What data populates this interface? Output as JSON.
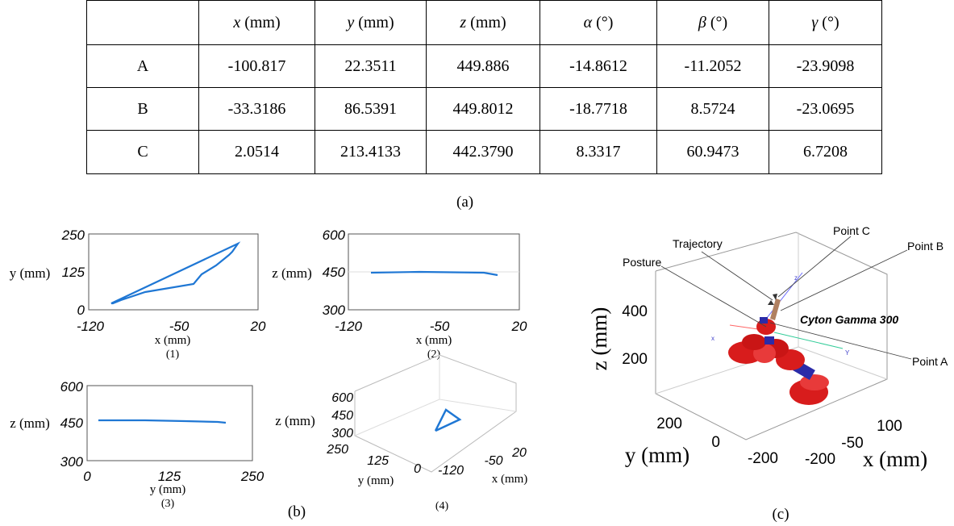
{
  "table": {
    "headers": [
      "",
      "x (mm)",
      "y (mm)",
      "z (mm)",
      "α (°)",
      "β (°)",
      "γ (°)"
    ],
    "header_vars": [
      "",
      "x",
      "y",
      "z",
      "α",
      "β",
      "γ"
    ],
    "header_units": [
      "",
      "(mm)",
      "(mm)",
      "(mm)",
      "(°)",
      "(°)",
      "(°)"
    ],
    "rows": [
      {
        "label": "A",
        "cells": [
          "-100.817",
          "22.3511",
          "449.886",
          "-14.8612",
          "-11.2052",
          "-23.9098"
        ]
      },
      {
        "label": "B",
        "cells": [
          "-33.3186",
          "86.5391",
          "449.8012",
          "-18.7718",
          "8.5724",
          "-23.0695"
        ]
      },
      {
        "label": "C",
        "cells": [
          "2.0514",
          "213.4133",
          "442.3790",
          "8.3317",
          "60.9473",
          "6.7208"
        ]
      }
    ]
  },
  "captions": {
    "a": "(a)",
    "b": "(b)",
    "c": "(c)",
    "b1": "(1)",
    "b2": "(2)",
    "b3": "(3)",
    "b4": "(4)"
  },
  "plots": {
    "p1": {
      "ylabel": "y (mm)",
      "xlabel": "x (mm)",
      "yticks": [
        "250",
        "125",
        "0"
      ],
      "xticks": [
        "-120",
        "-50",
        "20"
      ]
    },
    "p2": {
      "ylabel": "z (mm)",
      "xlabel": "x (mm)",
      "yticks": [
        "600",
        "450",
        "300"
      ],
      "xticks": [
        "-120",
        "-50",
        "20"
      ]
    },
    "p3": {
      "ylabel": "z (mm)",
      "xlabel": "y (mm)",
      "yticks": [
        "600",
        "450",
        "300"
      ],
      "xticks": [
        "0",
        "125",
        "250"
      ]
    },
    "p4": {
      "zlabel": "z (mm)",
      "ylabel": "y (mm)",
      "xlabel": "x (mm)",
      "zticks": [
        "600",
        "450",
        "300"
      ],
      "yticks": [
        "250",
        "125",
        "0"
      ],
      "xticks": [
        "-120",
        "-50",
        "20"
      ]
    }
  },
  "robot": {
    "labels": {
      "trajectory": "Trajectory",
      "posture": "Posture",
      "point_c": "Point C",
      "point_b": "Point B",
      "point_a": "Point A",
      "robot_name": "Cyton Gamma 300"
    },
    "axis_letters": {
      "x": "x",
      "y": "Y",
      "z": "z"
    },
    "zlabel": "z (mm)",
    "ylabel": "y (mm)",
    "xlabel": "x (mm)",
    "zticks": [
      "400",
      "200"
    ],
    "yticks": [
      "200",
      "0",
      "-200"
    ],
    "xticks": [
      "-200",
      "-50",
      "100"
    ]
  },
  "colors": {
    "trajectory": "#1f77d4",
    "robot": "#d81c1c",
    "joint": "#2b2ba8"
  }
}
